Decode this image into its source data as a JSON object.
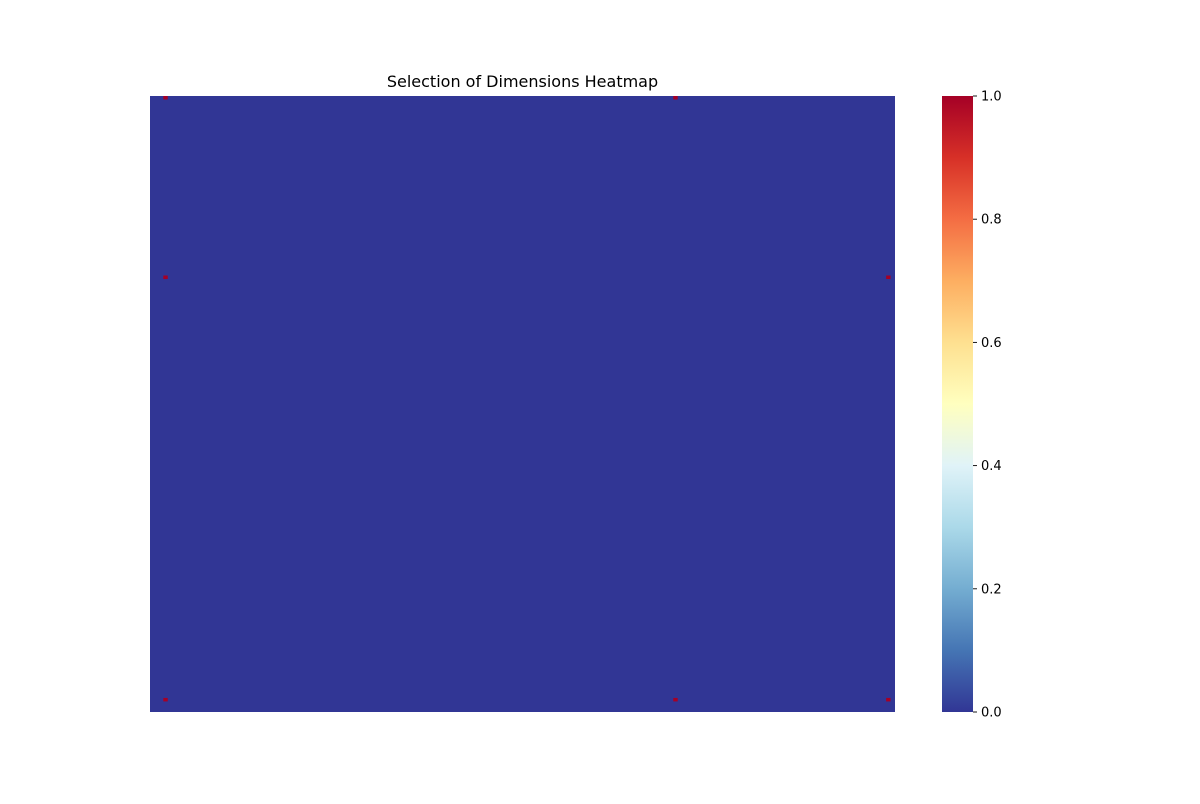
{
  "chart_data": {
    "type": "heatmap",
    "title": "Selection of Dimensions Heatmap",
    "n_rows": 175,
    "n_cols": 168,
    "background_value": 0.0,
    "highlighted_cells": [
      {
        "row": 3,
        "col": 3,
        "value": 1.0
      },
      {
        "row": 3,
        "col": 118,
        "value": 1.0
      },
      {
        "row": 3,
        "col": 166,
        "value": 1.0
      },
      {
        "row": 123,
        "col": 3,
        "value": 1.0
      },
      {
        "row": 123,
        "col": 166,
        "value": 1.0
      },
      {
        "row": 174,
        "col": 3,
        "value": 1.0
      },
      {
        "row": 174,
        "col": 118,
        "value": 1.0
      }
    ],
    "origin": "bottom",
    "x_tick_labels": [],
    "y_tick_labels": [],
    "colorbar": {
      "colormap": "RdYlBu_r",
      "range": [
        0.0,
        1.0
      ],
      "ticks": [
        "0.0",
        "0.2",
        "0.4",
        "0.6",
        "0.8",
        "1.0"
      ],
      "stops": [
        {
          "v": 0.0,
          "color": "#313695"
        },
        {
          "v": 0.1,
          "color": "#4575b4"
        },
        {
          "v": 0.2,
          "color": "#74add1"
        },
        {
          "v": 0.3,
          "color": "#abd9e9"
        },
        {
          "v": 0.4,
          "color": "#e0f3f8"
        },
        {
          "v": 0.5,
          "color": "#ffffbf"
        },
        {
          "v": 0.6,
          "color": "#fee090"
        },
        {
          "v": 0.7,
          "color": "#fdae61"
        },
        {
          "v": 0.8,
          "color": "#f46d43"
        },
        {
          "v": 0.9,
          "color": "#d73027"
        },
        {
          "v": 1.0,
          "color": "#a50026"
        }
      ]
    },
    "grid": false,
    "legend": "none"
  }
}
